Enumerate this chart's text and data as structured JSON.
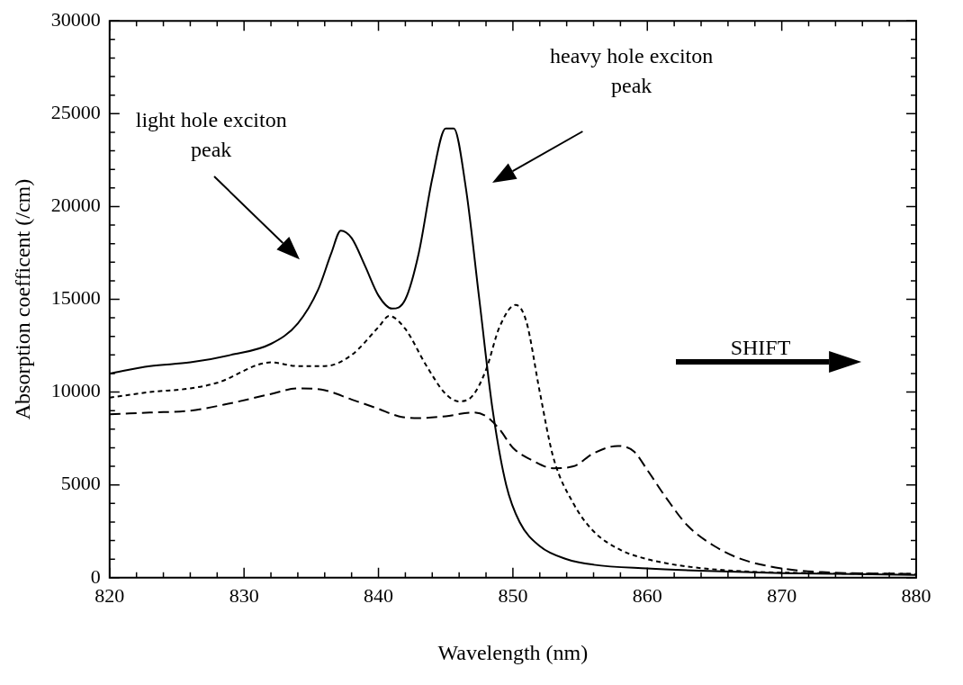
{
  "chart_data": {
    "type": "line",
    "xlabel": "Wavelength (nm)",
    "ylabel": "Absorption coefficent (/cm)",
    "xlim": [
      820,
      880
    ],
    "ylim": [
      0,
      30000
    ],
    "xticks": [
      820,
      {
        "value": 822,
        "label": null
      },
      {
        "value": 824,
        "label": null
      },
      {
        "value": 826,
        "label": null
      },
      {
        "value": 828,
        "label": null
      },
      830,
      {
        "value": 832,
        "label": null
      },
      {
        "value": 834,
        "label": null
      },
      {
        "value": 836,
        "label": null
      },
      {
        "value": 838,
        "label": null
      },
      840,
      {
        "value": 842,
        "label": null
      },
      {
        "value": 844,
        "label": null
      },
      {
        "value": 846,
        "label": null
      },
      {
        "value": 848,
        "label": null
      },
      850,
      {
        "value": 852,
        "label": null
      },
      {
        "value": 854,
        "label": null
      },
      {
        "value": 856,
        "label": null
      },
      {
        "value": 858,
        "label": null
      },
      860,
      {
        "value": 862,
        "label": null
      },
      {
        "value": 864,
        "label": null
      },
      {
        "value": 866,
        "label": null
      },
      {
        "value": 868,
        "label": null
      },
      870,
      {
        "value": 872,
        "label": null
      },
      {
        "value": 874,
        "label": null
      },
      {
        "value": 876,
        "label": null
      },
      {
        "value": 878,
        "label": null
      },
      880
    ],
    "yticks": [
      0,
      {
        "value": 1000,
        "label": null
      },
      {
        "value": 2000,
        "label": null
      },
      {
        "value": 3000,
        "label": null
      },
      {
        "value": 4000,
        "label": null
      },
      5000,
      {
        "value": 6000,
        "label": null
      },
      {
        "value": 7000,
        "label": null
      },
      {
        "value": 8000,
        "label": null
      },
      {
        "value": 9000,
        "label": null
      },
      10000,
      {
        "value": 11000,
        "label": null
      },
      {
        "value": 12000,
        "label": null
      },
      {
        "value": 13000,
        "label": null
      },
      {
        "value": 14000,
        "label": null
      },
      15000,
      {
        "value": 16000,
        "label": null
      },
      {
        "value": 17000,
        "label": null
      },
      {
        "value": 18000,
        "label": null
      },
      {
        "value": 19000,
        "label": null
      },
      20000,
      {
        "value": 21000,
        "label": null
      },
      {
        "value": 22000,
        "label": null
      },
      {
        "value": 23000,
        "label": null
      },
      {
        "value": 24000,
        "label": null
      },
      25000,
      {
        "value": 26000,
        "label": null
      },
      {
        "value": 27000,
        "label": null
      },
      {
        "value": 28000,
        "label": null
      },
      {
        "value": 29000,
        "label": null
      },
      30000
    ],
    "grid": false,
    "legend": false,
    "marker": "none",
    "series": [
      {
        "color": "#000000",
        "line_style": "solid",
        "x": [
          820,
          823,
          826,
          829,
          832,
          834,
          835.5,
          836.5,
          837.2,
          838,
          839,
          840,
          841,
          842,
          843,
          844,
          845,
          845.6,
          846.5,
          847.5,
          848.5,
          849.5,
          850.5,
          852,
          854,
          856,
          860,
          865,
          870,
          880
        ],
        "values": [
          11000,
          11400,
          11600,
          12000,
          12600,
          13700,
          15500,
          17500,
          18700,
          18300,
          16800,
          15200,
          14500,
          15000,
          17500,
          21500,
          24200,
          24200,
          21000,
          15000,
          9000,
          5000,
          3000,
          1700,
          1000,
          700,
          500,
          350,
          250,
          150
        ]
      },
      {
        "color": "#000000",
        "line_style": "dotted",
        "x": [
          820,
          823,
          826,
          828,
          832,
          834,
          836,
          838,
          840,
          840.8,
          842,
          843.5,
          845,
          846,
          847,
          848,
          849,
          850.2,
          851,
          852,
          853,
          854.5,
          856,
          858,
          860,
          863,
          867,
          872,
          880
        ],
        "values": [
          9700,
          10000,
          10200,
          10500,
          11600,
          11400,
          11400,
          12000,
          13500,
          14100,
          13400,
          11500,
          9900,
          9500,
          9800,
          11200,
          13500,
          14700,
          13800,
          10000,
          6500,
          4000,
          2500,
          1500,
          1000,
          600,
          350,
          250,
          200
        ]
      },
      {
        "color": "#000000",
        "line_style": "dashed",
        "x": [
          820,
          823,
          826,
          829,
          832,
          834,
          836,
          838,
          840,
          841.5,
          843,
          845,
          847,
          848,
          849,
          850,
          851.5,
          853,
          854.5,
          856,
          857.8,
          859,
          860,
          861.5,
          863,
          865,
          867,
          870,
          873,
          880
        ],
        "values": [
          8800,
          8900,
          9000,
          9400,
          9900,
          10200,
          10100,
          9600,
          9100,
          8700,
          8600,
          8700,
          8900,
          8700,
          8000,
          7000,
          6300,
          5900,
          6000,
          6700,
          7100,
          6800,
          5800,
          4200,
          2800,
          1700,
          1000,
          500,
          300,
          200
        ]
      }
    ],
    "annotations": [
      "light hole exciton peak",
      "heavy hole exciton peak",
      "SHIFT"
    ]
  }
}
